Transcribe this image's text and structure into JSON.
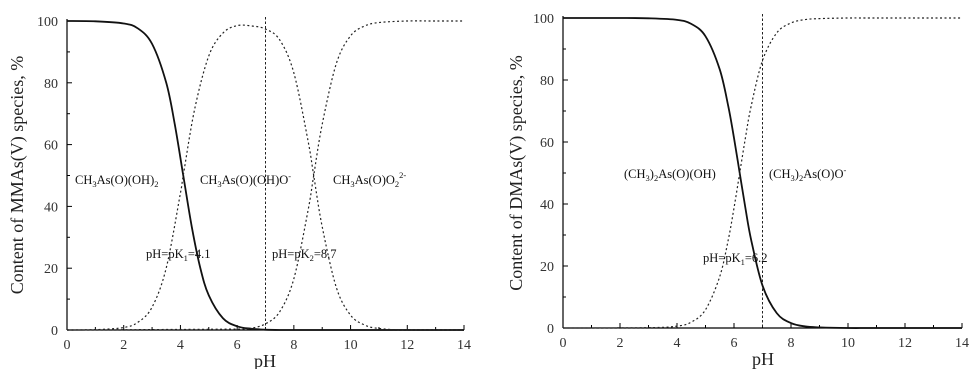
{
  "chart_data": [
    {
      "type": "line",
      "title": "",
      "xlabel": "pH",
      "ylabel": "Content of MMAs(V) species, %",
      "xlim": [
        0,
        14
      ],
      "ylim": [
        0,
        100
      ],
      "xticks": [
        "0",
        "2",
        "4",
        "6",
        "8",
        "10",
        "12",
        "14"
      ],
      "yticks": [
        "0",
        "20",
        "40",
        "60",
        "80",
        "100"
      ],
      "grid": false,
      "pKa": [
        4.1,
        8.7
      ],
      "vertical_line_x": 7,
      "species_labels": [
        {
          "base": "CH",
          "s1": "3",
          "mid": "As(O)(OH)",
          "s2": "2",
          "tail": "",
          "sup": ""
        },
        {
          "base": "CH",
          "s1": "3",
          "mid": "As(O)(OH)O",
          "s2": "",
          "tail": "",
          "sup": "-"
        },
        {
          "base": "CH",
          "s1": "3",
          "mid": "As(O)O",
          "s2": "2",
          "tail": "",
          "sup": "2-"
        }
      ],
      "pk_labels": [
        {
          "pre": "pH=pK",
          "sub": "1",
          "post": "=4.1"
        },
        {
          "pre": "pH=pK",
          "sub": "2",
          "post": "=8.7"
        }
      ],
      "series": [
        {
          "style": "solid",
          "x": [
            0,
            1,
            2,
            2.5,
            3,
            3.5,
            3.8,
            4.1,
            4.4,
            4.7,
            5,
            5.5,
            6,
            6.5,
            7,
            7.5,
            8,
            8.7,
            9,
            10,
            11,
            12,
            13,
            14
          ],
          "y": [
            100,
            99.9,
            99.2,
            97.6,
            92.6,
            80.0,
            66.6,
            50.0,
            33.4,
            20.1,
            11.2,
            3.8,
            1.2,
            0.4,
            0.1,
            0,
            0,
            0,
            0,
            0,
            0,
            0,
            0,
            0
          ]
        },
        {
          "style": "dotted",
          "x": [
            0,
            1,
            2,
            2.5,
            3,
            3.5,
            4,
            4.1,
            4.5,
            5,
            5.5,
            6,
            6.5,
            7,
            7.5,
            8,
            8.5,
            8.7,
            9,
            9.5,
            10,
            10.5,
            11,
            12,
            14
          ],
          "y": [
            0,
            0.1,
            0.8,
            2.5,
            7.4,
            20.1,
            44.3,
            50,
            71.4,
            88.7,
            96.1,
            98.5,
            98.4,
            97.4,
            93.9,
            83.2,
            61.2,
            50,
            33.4,
            13.7,
            4.8,
            1.6,
            0.5,
            0,
            0
          ]
        },
        {
          "style": "dotted",
          "x": [
            0,
            6,
            6.5,
            7,
            7.5,
            8,
            8.5,
            8.7,
            9,
            9.5,
            10,
            10.5,
            11,
            12,
            13,
            14
          ],
          "y": [
            0,
            0.3,
            0.6,
            2.0,
            5.9,
            16.6,
            38.7,
            50,
            66.6,
            86.3,
            95.2,
            98.4,
            99.5,
            100,
            100,
            100
          ]
        }
      ]
    },
    {
      "type": "line",
      "title": "",
      "xlabel": "pH",
      "ylabel": "Content of DMAs(V) species, %",
      "xlim": [
        0,
        14
      ],
      "ylim": [
        0,
        100
      ],
      "xticks": [
        "0",
        "2",
        "4",
        "6",
        "8",
        "10",
        "12",
        "14"
      ],
      "yticks": [
        "0",
        "20",
        "40",
        "60",
        "80",
        "100"
      ],
      "grid": false,
      "pKa": [
        6.2
      ],
      "vertical_line_x": 7,
      "species_labels": [
        {
          "pre": "(CH",
          "s1": "3",
          "post": ")",
          "s2": "2",
          "mid": "As(O)(OH)",
          "sup": ""
        },
        {
          "pre": "(CH",
          "s1": "3",
          "post": ")",
          "s2": "2",
          "mid": "As(O)O",
          "sup": "-"
        }
      ],
      "pk_labels": [
        {
          "pre": "pH=pK",
          "sub": "1",
          "post": "=6.2"
        }
      ],
      "series": [
        {
          "style": "solid",
          "x": [
            0,
            2,
            3,
            4,
            4.5,
            5,
            5.5,
            5.8,
            6,
            6.2,
            6.4,
            6.6,
            7,
            7.5,
            8,
            8.5,
            9,
            10,
            11,
            14
          ],
          "y": [
            100,
            100,
            99.9,
            99.4,
            98.1,
            94.1,
            83.4,
            71.5,
            61.3,
            50,
            38.7,
            28.5,
            13.7,
            4.8,
            1.6,
            0.5,
            0.2,
            0,
            0,
            0
          ]
        },
        {
          "style": "dotted",
          "x": [
            0,
            3,
            4,
            4.5,
            5,
            5.5,
            5.8,
            6,
            6.2,
            6.4,
            6.6,
            7,
            7.5,
            8,
            8.5,
            9,
            10,
            11,
            14
          ],
          "y": [
            0,
            0.1,
            0.6,
            1.9,
            5.9,
            16.6,
            28.5,
            38.7,
            50,
            61.3,
            71.5,
            86.3,
            95.2,
            98.4,
            99.5,
            99.8,
            100,
            100,
            100
          ]
        }
      ]
    }
  ]
}
